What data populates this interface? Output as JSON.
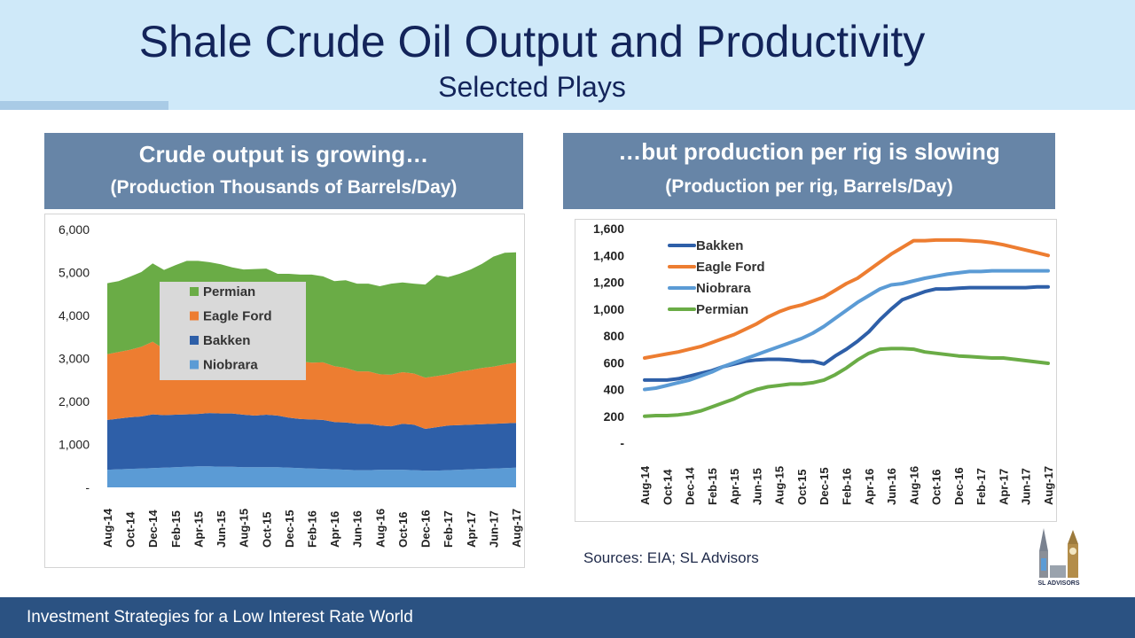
{
  "slide": {
    "title": "Shale Crude Oil Output and Productivity",
    "subtitle": "Selected Plays",
    "footer": "Investment Strategies for a Low Interest Rate World",
    "sources": "Sources: EIA; SL Advisors",
    "logo_text": "SL ADVISORS"
  },
  "panels": {
    "left_header_line1": "Crude output is growing…",
    "left_header_line2": "(Production Thousands of Barrels/Day)",
    "right_header_line1": "…but production per rig is slowing",
    "right_header_line2": "(Production per rig, Barrels/Day)"
  },
  "colors": {
    "Bakken": "#2e5fa8",
    "Eagle Ford": "#ed7d31",
    "Niobrara": "#5b9bd5",
    "Permian": "#6aac46"
  },
  "chart_data": [
    {
      "type": "area",
      "stacked": true,
      "months": [
        "Aug-14",
        "Sep-14",
        "Oct-14",
        "Nov-14",
        "Dec-14",
        "Jan-15",
        "Feb-15",
        "Mar-15",
        "Apr-15",
        "May-15",
        "Jun-15",
        "Jul-15",
        "Aug-15",
        "Sep-15",
        "Oct-15",
        "Nov-15",
        "Dec-15",
        "Jan-16",
        "Feb-16",
        "Mar-16",
        "Apr-16",
        "May-16",
        "Jun-16",
        "Jul-16",
        "Aug-16",
        "Sep-16",
        "Oct-16",
        "Nov-16",
        "Dec-16",
        "Jan-17",
        "Feb-17",
        "Mar-17",
        "Apr-17",
        "May-17",
        "Jun-17",
        "Jul-17",
        "Aug-17"
      ],
      "tick_labels": [
        "Aug-14",
        "Oct-14",
        "Dec-14",
        "Feb-15",
        "Apr-15",
        "Jun-15",
        "Aug-15",
        "Oct-15",
        "Dec-15",
        "Feb-16",
        "Apr-16",
        "Jun-16",
        "Aug-16",
        "Oct-16",
        "Dec-16",
        "Feb-17",
        "Apr-17",
        "Jun-17",
        "Aug-17"
      ],
      "y_tick_labels": [
        "-",
        "1,000",
        "2,000",
        "3,000",
        "4,000",
        "5,000",
        "6,000"
      ],
      "ylim": [
        0,
        6000
      ],
      "legend": [
        "Permian",
        "Eagle Ford",
        "Bakken",
        "Niobrara"
      ],
      "legend_position": "center-left",
      "grid": false,
      "series": [
        {
          "name": "Niobrara",
          "values": [
            410,
            420,
            430,
            440,
            450,
            460,
            470,
            480,
            490,
            490,
            480,
            480,
            470,
            470,
            470,
            470,
            460,
            450,
            440,
            430,
            420,
            410,
            400,
            400,
            410,
            410,
            410,
            400,
            390,
            390,
            400,
            410,
            420,
            430,
            440,
            450,
            460
          ]
        },
        {
          "name": "Bakken",
          "values": [
            1160,
            1180,
            1200,
            1210,
            1250,
            1220,
            1220,
            1220,
            1220,
            1240,
            1240,
            1240,
            1220,
            1200,
            1220,
            1200,
            1160,
            1140,
            1140,
            1140,
            1100,
            1100,
            1080,
            1080,
            1030,
            1010,
            1070,
            1060,
            970,
            1010,
            1040,
            1040,
            1040,
            1040,
            1040,
            1040,
            1040
          ]
        },
        {
          "name": "Eagle Ford",
          "values": [
            1530,
            1550,
            1570,
            1620,
            1690,
            1540,
            1590,
            1640,
            1660,
            1620,
            1590,
            1500,
            1440,
            1420,
            1400,
            1380,
            1360,
            1340,
            1320,
            1340,
            1300,
            1270,
            1220,
            1220,
            1190,
            1200,
            1200,
            1190,
            1190,
            1190,
            1190,
            1240,
            1270,
            1310,
            1330,
            1370,
            1400
          ]
        },
        {
          "name": "Permian",
          "values": [
            1650,
            1650,
            1700,
            1740,
            1820,
            1840,
            1890,
            1930,
            1900,
            1890,
            1880,
            1900,
            1940,
            1990,
            2000,
            1920,
            1990,
            2020,
            2050,
            2000,
            1980,
            2040,
            2040,
            2040,
            2050,
            2120,
            2090,
            2090,
            2170,
            2350,
            2260,
            2280,
            2340,
            2420,
            2560,
            2600,
            2570
          ]
        }
      ]
    },
    {
      "type": "line",
      "months": [
        "Aug-14",
        "Sep-14",
        "Oct-14",
        "Nov-14",
        "Dec-14",
        "Jan-15",
        "Feb-15",
        "Mar-15",
        "Apr-15",
        "May-15",
        "Jun-15",
        "Jul-15",
        "Aug-15",
        "Sep-15",
        "Oct-15",
        "Nov-15",
        "Dec-15",
        "Jan-16",
        "Feb-16",
        "Mar-16",
        "Apr-16",
        "May-16",
        "Jun-16",
        "Jul-16",
        "Aug-16",
        "Sep-16",
        "Oct-16",
        "Nov-16",
        "Dec-16",
        "Jan-17",
        "Feb-17",
        "Mar-17",
        "Apr-17",
        "May-17",
        "Jun-17",
        "Jul-17",
        "Aug-17"
      ],
      "tick_labels": [
        "Aug-14",
        "Oct-14",
        "Dec-14",
        "Feb-15",
        "Apr-15",
        "Jun-15",
        "Aug-15",
        "Oct-15",
        "Dec-15",
        "Feb-16",
        "Apr-16",
        "Jun-16",
        "Aug-16",
        "Oct-16",
        "Dec-16",
        "Feb-17",
        "Apr-17",
        "Jun-17",
        "Aug-17"
      ],
      "y_tick_labels": [
        "-",
        "200",
        "400",
        "600",
        "800",
        "1,000",
        "1,200",
        "1,400",
        "1,600"
      ],
      "ylim": [
        0,
        1600
      ],
      "legend_position": "top-left",
      "grid": false,
      "series": [
        {
          "name": "Bakken",
          "values": [
            470,
            470,
            470,
            480,
            500,
            520,
            540,
            570,
            590,
            610,
            620,
            625,
            625,
            620,
            610,
            610,
            590,
            650,
            700,
            760,
            830,
            920,
            1000,
            1070,
            1100,
            1130,
            1150,
            1150,
            1155,
            1160,
            1160,
            1160,
            1160,
            1160,
            1160,
            1165,
            1165
          ]
        },
        {
          "name": "Eagle Ford",
          "values": [
            635,
            650,
            665,
            680,
            700,
            720,
            750,
            780,
            810,
            850,
            890,
            940,
            980,
            1010,
            1030,
            1060,
            1090,
            1140,
            1190,
            1230,
            1290,
            1350,
            1410,
            1460,
            1510,
            1510,
            1515,
            1515,
            1515,
            1510,
            1505,
            1495,
            1480,
            1460,
            1440,
            1420,
            1400
          ]
        },
        {
          "name": "Niobrara",
          "values": [
            400,
            410,
            430,
            450,
            470,
            500,
            530,
            570,
            600,
            630,
            660,
            690,
            720,
            750,
            780,
            820,
            870,
            930,
            990,
            1050,
            1100,
            1150,
            1180,
            1190,
            1210,
            1230,
            1245,
            1260,
            1270,
            1280,
            1280,
            1285,
            1285,
            1285,
            1285,
            1285,
            1285
          ]
        },
        {
          "name": "Permian",
          "values": [
            200,
            205,
            205,
            210,
            220,
            240,
            270,
            300,
            330,
            370,
            400,
            420,
            430,
            440,
            440,
            450,
            470,
            510,
            560,
            620,
            670,
            700,
            705,
            705,
            700,
            680,
            670,
            660,
            650,
            645,
            640,
            635,
            635,
            625,
            615,
            605,
            595
          ]
        }
      ]
    }
  ]
}
